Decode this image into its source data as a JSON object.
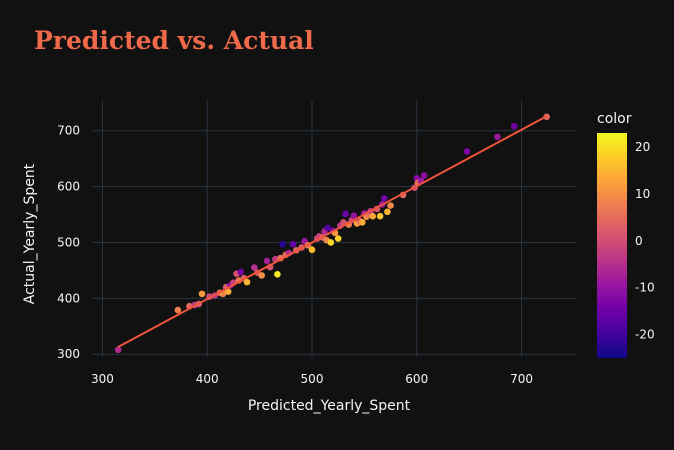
{
  "chart_data": {
    "type": "scatter",
    "title": "Predicted vs. Actual",
    "xlabel": "Predicted_Yearly_Spent",
    "ylabel": "Actual_Yearly_Spent",
    "xlim": [
      290,
      752
    ],
    "ylim": [
      295,
      755
    ],
    "xticks": [
      300,
      400,
      500,
      600,
      700
    ],
    "yticks": [
      300,
      400,
      500,
      600,
      700
    ],
    "grid": true,
    "colorbar": {
      "title": "color",
      "range": [
        -25,
        23
      ],
      "ticks": [
        20,
        10,
        0,
        -10,
        -20
      ],
      "colorscale": [
        "#0d0887",
        "#46039f",
        "#7201a8",
        "#9c179e",
        "#bd3786",
        "#d8576b",
        "#ed7953",
        "#fb9f3a",
        "#fdca26",
        "#f0f921"
      ]
    },
    "points": [
      {
        "x": 315,
        "y": 308,
        "c": -6
      },
      {
        "x": 372,
        "y": 379,
        "c": 8
      },
      {
        "x": 383,
        "y": 386,
        "c": 5
      },
      {
        "x": 388,
        "y": 388,
        "c": -3
      },
      {
        "x": 392,
        "y": 390,
        "c": 2
      },
      {
        "x": 395,
        "y": 408,
        "c": 12
      },
      {
        "x": 402,
        "y": 403,
        "c": 0
      },
      {
        "x": 407,
        "y": 405,
        "c": -4
      },
      {
        "x": 412,
        "y": 410,
        "c": 6
      },
      {
        "x": 415,
        "y": 408,
        "c": 9
      },
      {
        "x": 418,
        "y": 420,
        "c": 3
      },
      {
        "x": 420,
        "y": 412,
        "c": 14
      },
      {
        "x": 422,
        "y": 423,
        "c": -10
      },
      {
        "x": 425,
        "y": 428,
        "c": -2
      },
      {
        "x": 428,
        "y": 444,
        "c": 1
      },
      {
        "x": 430,
        "y": 432,
        "c": 7
      },
      {
        "x": 432,
        "y": 447,
        "c": -14
      },
      {
        "x": 435,
        "y": 436,
        "c": 4
      },
      {
        "x": 438,
        "y": 429,
        "c": 15
      },
      {
        "x": 445,
        "y": 455,
        "c": -5
      },
      {
        "x": 448,
        "y": 446,
        "c": 2
      },
      {
        "x": 452,
        "y": 441,
        "c": 10
      },
      {
        "x": 457,
        "y": 467,
        "c": -8
      },
      {
        "x": 460,
        "y": 456,
        "c": 1
      },
      {
        "x": 465,
        "y": 470,
        "c": -3
      },
      {
        "x": 467,
        "y": 443,
        "c": 21
      },
      {
        "x": 470,
        "y": 472,
        "c": 6
      },
      {
        "x": 472,
        "y": 497,
        "c": -22
      },
      {
        "x": 475,
        "y": 478,
        "c": 5
      },
      {
        "x": 478,
        "y": 481,
        "c": -6
      },
      {
        "x": 482,
        "y": 497,
        "c": -16
      },
      {
        "x": 485,
        "y": 486,
        "c": 3
      },
      {
        "x": 490,
        "y": 491,
        "c": 2
      },
      {
        "x": 493,
        "y": 502,
        "c": -9
      },
      {
        "x": 496,
        "y": 495,
        "c": 7
      },
      {
        "x": 500,
        "y": 487,
        "c": 16
      },
      {
        "x": 505,
        "y": 507,
        "c": 0
      },
      {
        "x": 507,
        "y": 511,
        "c": -2
      },
      {
        "x": 510,
        "y": 509,
        "c": 4
      },
      {
        "x": 512,
        "y": 520,
        "c": -6
      },
      {
        "x": 514,
        "y": 504,
        "c": 9
      },
      {
        "x": 515,
        "y": 526,
        "c": -18
      },
      {
        "x": 518,
        "y": 500,
        "c": 19
      },
      {
        "x": 520,
        "y": 521,
        "c": -12
      },
      {
        "x": 522,
        "y": 517,
        "c": 11
      },
      {
        "x": 525,
        "y": 507,
        "c": 18
      },
      {
        "x": 527,
        "y": 530,
        "c": -4
      },
      {
        "x": 530,
        "y": 536,
        "c": 1
      },
      {
        "x": 532,
        "y": 551,
        "c": -15
      },
      {
        "x": 535,
        "y": 532,
        "c": 8
      },
      {
        "x": 538,
        "y": 540,
        "c": -1
      },
      {
        "x": 540,
        "y": 548,
        "c": -10
      },
      {
        "x": 543,
        "y": 534,
        "c": 12
      },
      {
        "x": 546,
        "y": 538,
        "c": 3
      },
      {
        "x": 548,
        "y": 536,
        "c": 14
      },
      {
        "x": 550,
        "y": 552,
        "c": -7
      },
      {
        "x": 552,
        "y": 546,
        "c": 10
      },
      {
        "x": 554,
        "y": 550,
        "c": 6
      },
      {
        "x": 556,
        "y": 556,
        "c": -3
      },
      {
        "x": 558,
        "y": 547,
        "c": 13
      },
      {
        "x": 562,
        "y": 560,
        "c": 2
      },
      {
        "x": 565,
        "y": 547,
        "c": 17
      },
      {
        "x": 567,
        "y": 568,
        "c": -9
      },
      {
        "x": 569,
        "y": 579,
        "c": -14
      },
      {
        "x": 572,
        "y": 555,
        "c": 15
      },
      {
        "x": 575,
        "y": 566,
        "c": 9
      },
      {
        "x": 587,
        "y": 585,
        "c": 4
      },
      {
        "x": 598,
        "y": 598,
        "c": 0
      },
      {
        "x": 600,
        "y": 615,
        "c": -12
      },
      {
        "x": 601,
        "y": 607,
        "c": 6
      },
      {
        "x": 604,
        "y": 610,
        "c": -8
      },
      {
        "x": 607,
        "y": 620,
        "c": -11
      },
      {
        "x": 648,
        "y": 663,
        "c": -13
      },
      {
        "x": 677,
        "y": 689,
        "c": -9
      },
      {
        "x": 693,
        "y": 708,
        "c": -14
      },
      {
        "x": 724,
        "y": 725,
        "c": 4
      }
    ],
    "trendline": {
      "x": [
        315,
        724
      ],
      "y": [
        313,
        726
      ]
    }
  }
}
